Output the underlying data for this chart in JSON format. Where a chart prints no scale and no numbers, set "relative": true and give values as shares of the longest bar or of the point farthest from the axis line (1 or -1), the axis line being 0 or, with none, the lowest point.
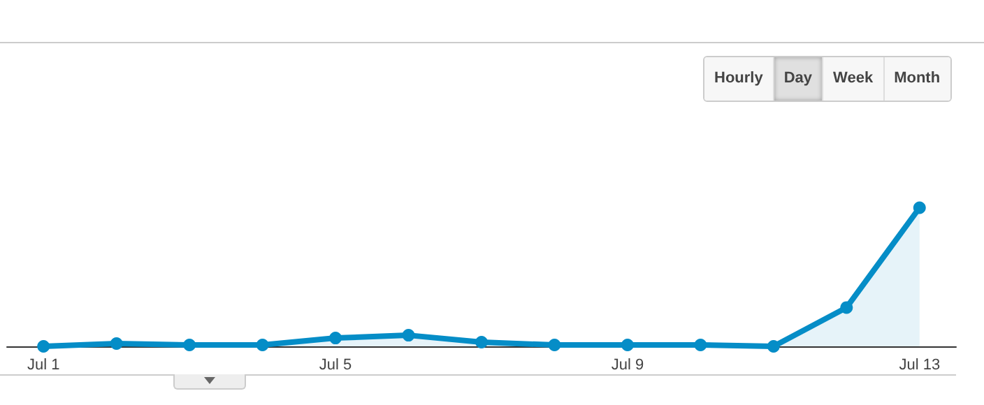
{
  "chart_data": {
    "type": "area",
    "relative": true,
    "categories": [
      "Jul 1",
      null,
      null,
      null,
      "Jul 5",
      null,
      null,
      null,
      "Jul 9",
      null,
      null,
      null,
      "Jul 13"
    ],
    "series": [
      {
        "color": "#058dc7",
        "values": [
          0,
          0.02,
          0.01,
          0.01,
          0.06,
          0.08,
          0.03,
          0.01,
          0.01,
          0.01,
          0,
          0.28,
          1
        ]
      }
    ],
    "marker": "circle",
    "annotations": [
      "Hourly",
      "Day",
      "Week",
      "Month"
    ]
  }
}
